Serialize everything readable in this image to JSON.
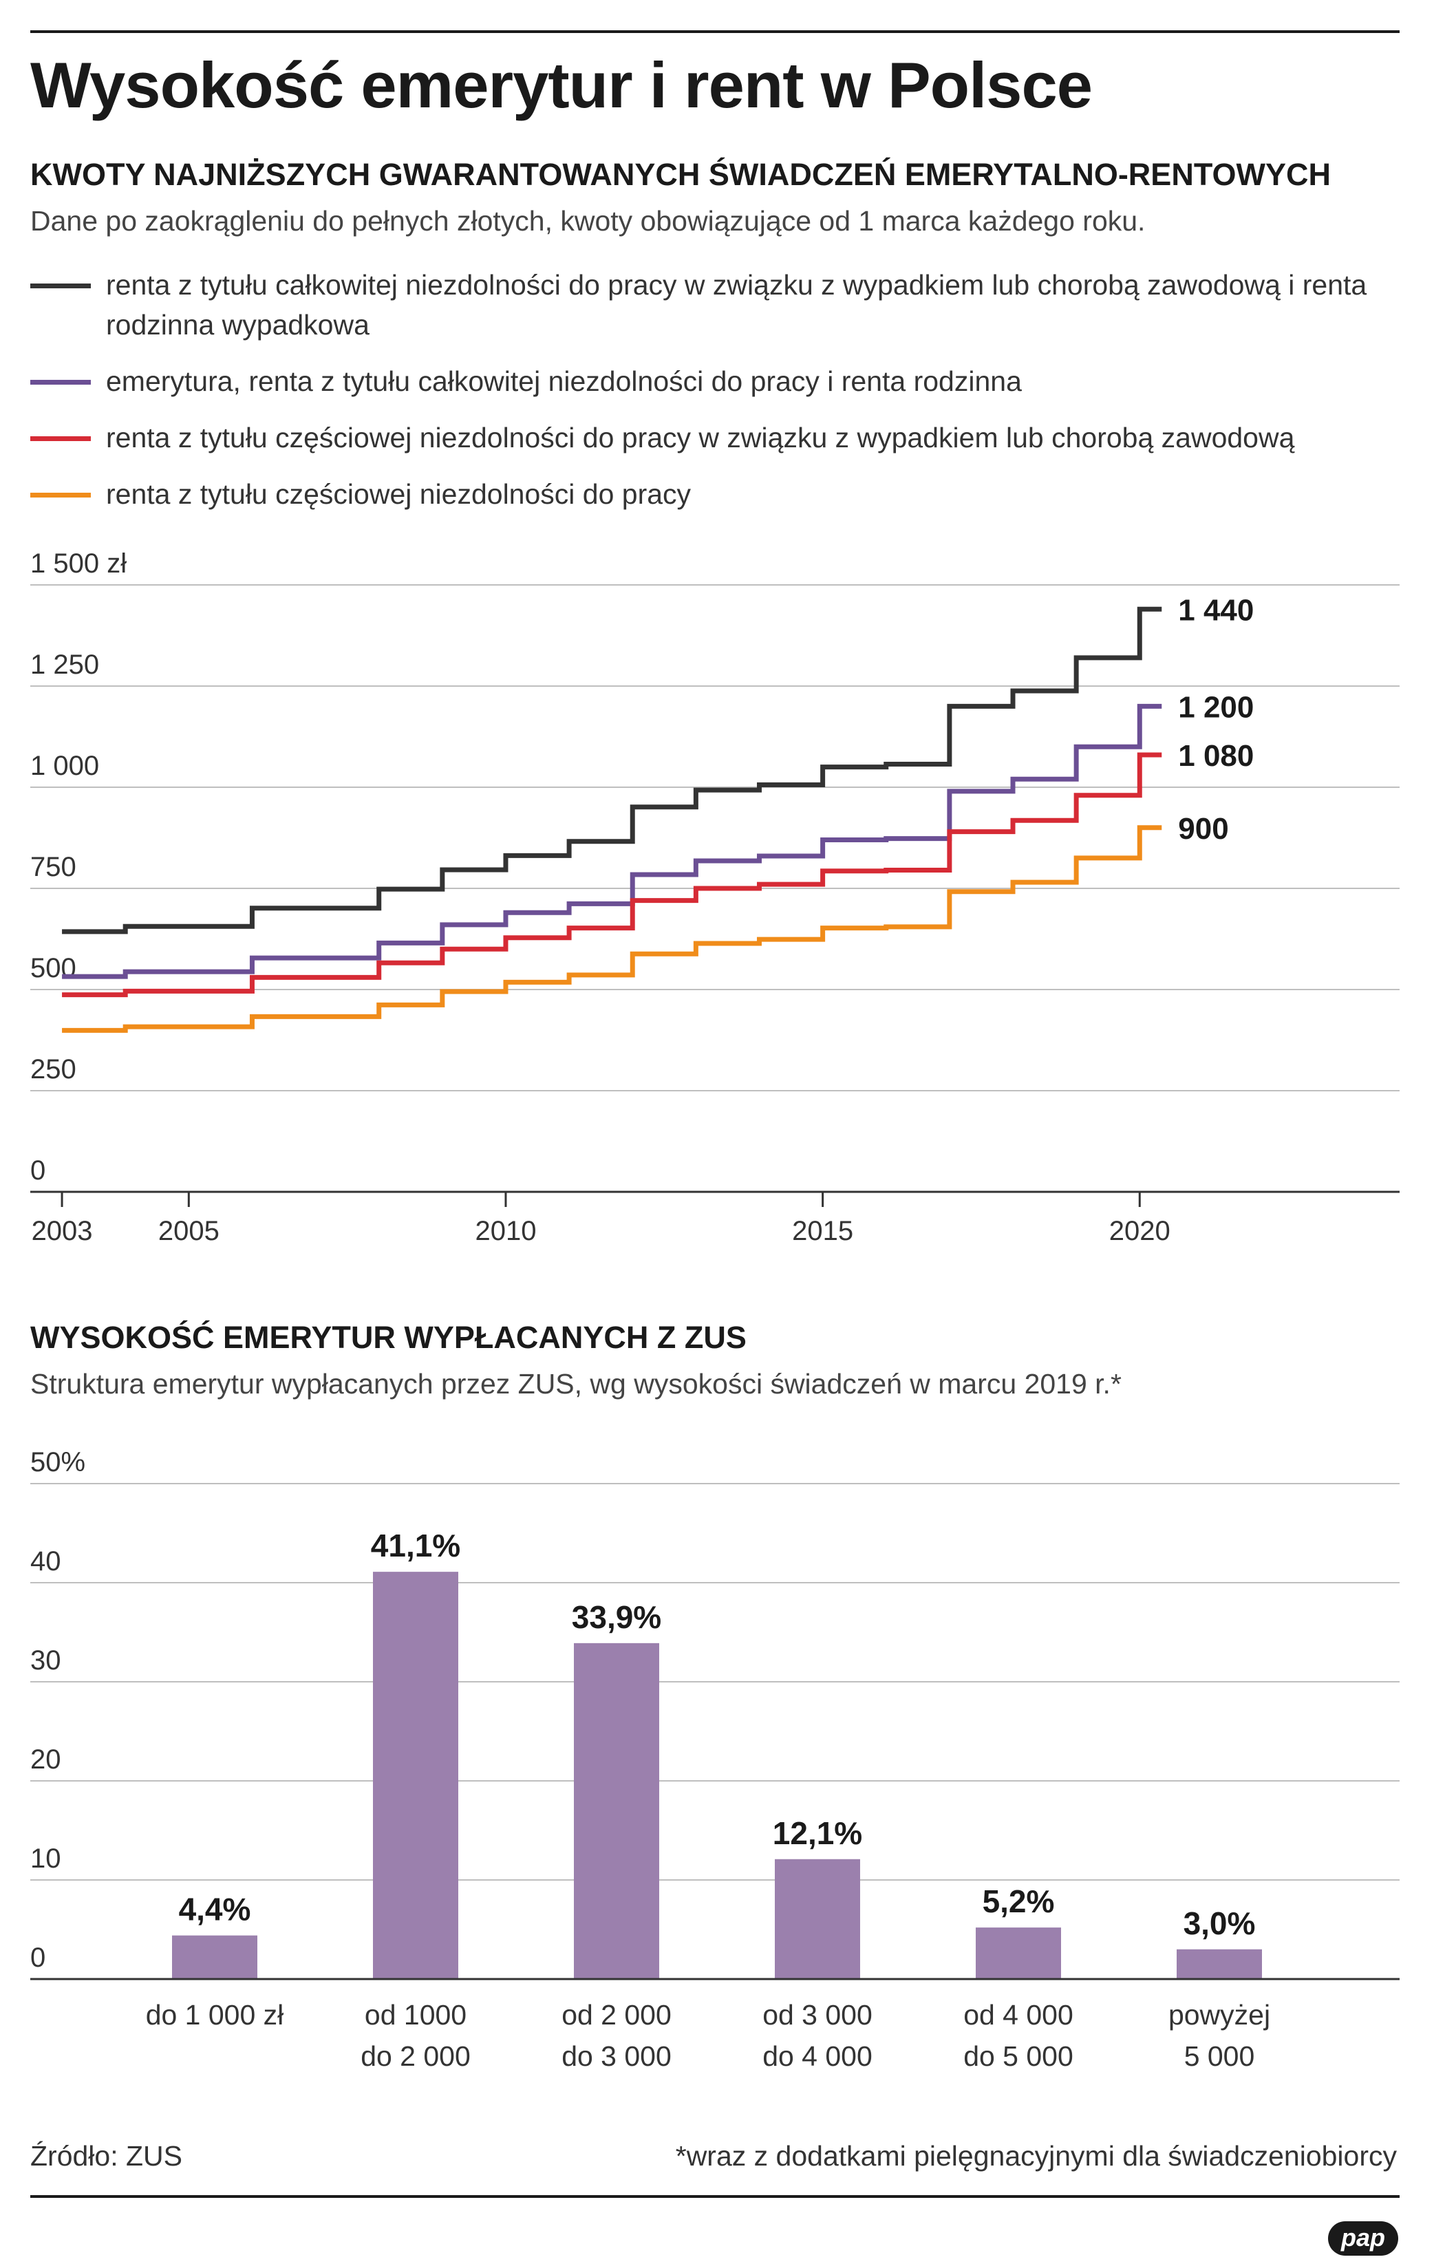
{
  "title": "Wysokość emerytur i rent w Polsce",
  "section1": {
    "heading": "KWOTY NAJNIŻSZYCH GWARANTOWANYCH ŚWIADCZEŃ EMERYTALNO-RENTOWYCH",
    "subheading": "Dane po zaokrągleniu do pełnych złotych, kwoty obowiązujące od 1 marca każdego roku.",
    "legend": [
      {
        "label": "renta z tytułu całkowitej niezdolności do pracy w związku z wypadkiem lub chorobą zawodową i renta rodzinna wypadkowa",
        "color": "#333333"
      },
      {
        "label": "emerytura, renta z tytułu całkowitej niezdolności do pracy i renta rodzinna",
        "color": "#6b4f94"
      },
      {
        "label": "renta z tytułu częściowej niezdolności do pracy w związku z wypadkiem lub chorobą zawodową",
        "color": "#d62b35"
      },
      {
        "label": "renta z tytułu częściowej niezdolności do pracy",
        "color": "#f08c1a"
      }
    ]
  },
  "section2": {
    "heading": "WYSOKOŚĆ EMERYTUR WYPŁACANYCH Z ZUS",
    "subheading": "Struktura emerytur wypłacanych przez ZUS, wg wysokości świadczeń w marcu 2019 r.*"
  },
  "chart_data": [
    {
      "type": "line",
      "step": true,
      "title": "KWOTY NAJNIŻSZYCH GWARANTOWANYCH ŚWIADCZEŃ EMERYTALNO-RENTOWYCH",
      "x": [
        2003,
        2004,
        2005,
        2006,
        2007,
        2008,
        2009,
        2010,
        2011,
        2012,
        2013,
        2014,
        2015,
        2016,
        2017,
        2018,
        2019,
        2020
      ],
      "xticks": [
        2003,
        2005,
        2010,
        2015,
        2020
      ],
      "xlim": [
        2002.5,
        2024.1
      ],
      "ylim": [
        0,
        1500
      ],
      "yticks": [
        0,
        250,
        500,
        750,
        1000,
        1250,
        1500
      ],
      "ytick_labels": [
        "0",
        "250",
        "500",
        "750",
        "1 000",
        "1 250",
        "1 500 zł"
      ],
      "series": [
        {
          "name": "renta z tytułu całkowitej niezdolności do pracy w związku z wypadkiem lub chorobą zawodową i renta rodzinna wypadkowa",
          "color": "#333333",
          "values": [
            643,
            656,
            656,
            701,
            701,
            748,
            796,
            831,
            866,
            951,
            993,
            1006,
            1050,
            1057,
            1200,
            1238,
            1320,
            1440
          ],
          "end_label": "1 440"
        },
        {
          "name": "emerytura, renta z tytułu całkowitej niezdolności do pracy i renta rodzinna",
          "color": "#6b4f94",
          "values": [
            532,
            544,
            544,
            578,
            578,
            615,
            660,
            690,
            712,
            784,
            818,
            830,
            870,
            873,
            990,
            1020,
            1100,
            1200
          ],
          "end_label": "1 200"
        },
        {
          "name": "renta z tytułu częściowej niezdolności do pracy w związku z wypadkiem lub chorobą zawodową",
          "color": "#d62b35",
          "values": [
            487,
            496,
            496,
            530,
            530,
            566,
            600,
            628,
            652,
            720,
            750,
            760,
            793,
            795,
            890,
            918,
            980,
            1080
          ],
          "end_label": "1 080"
        },
        {
          "name": "renta z tytułu częściowej niezdolności do pracy",
          "color": "#f08c1a",
          "values": [
            399,
            408,
            408,
            433,
            433,
            462,
            495,
            518,
            536,
            588,
            614,
            624,
            652,
            655,
            742,
            765,
            825,
            900
          ],
          "end_label": "900"
        }
      ]
    },
    {
      "type": "bar",
      "title": "WYSOKOŚĆ EMERYTUR WYPŁACANYCH Z ZUS",
      "categories": [
        "do 1 000 zł",
        "od 1000\ndo 2 000",
        "od 2 000\ndo 3 000",
        "od 3 000\ndo 4 000",
        "od 4 000\ndo 5 000",
        "powyżej\n5 000"
      ],
      "values": [
        4.4,
        41.1,
        33.9,
        12.1,
        5.2,
        3.0
      ],
      "data_labels": [
        "4,4%",
        "41,1%",
        "33,9%",
        "12,1%",
        "5,2%",
        "3,0%"
      ],
      "ylim": [
        0,
        50
      ],
      "yticks": [
        0,
        10,
        20,
        30,
        40,
        50
      ],
      "ytick_labels": [
        "0",
        "10",
        "20",
        "30",
        "40",
        "50%"
      ],
      "bar_color": "#9b80ad"
    }
  ],
  "footer": {
    "source": "Źródło: ZUS",
    "note": "*wraz z dodatkami pielęgnacyjnymi dla świadczeniobiorcy",
    "logo": "pap"
  }
}
